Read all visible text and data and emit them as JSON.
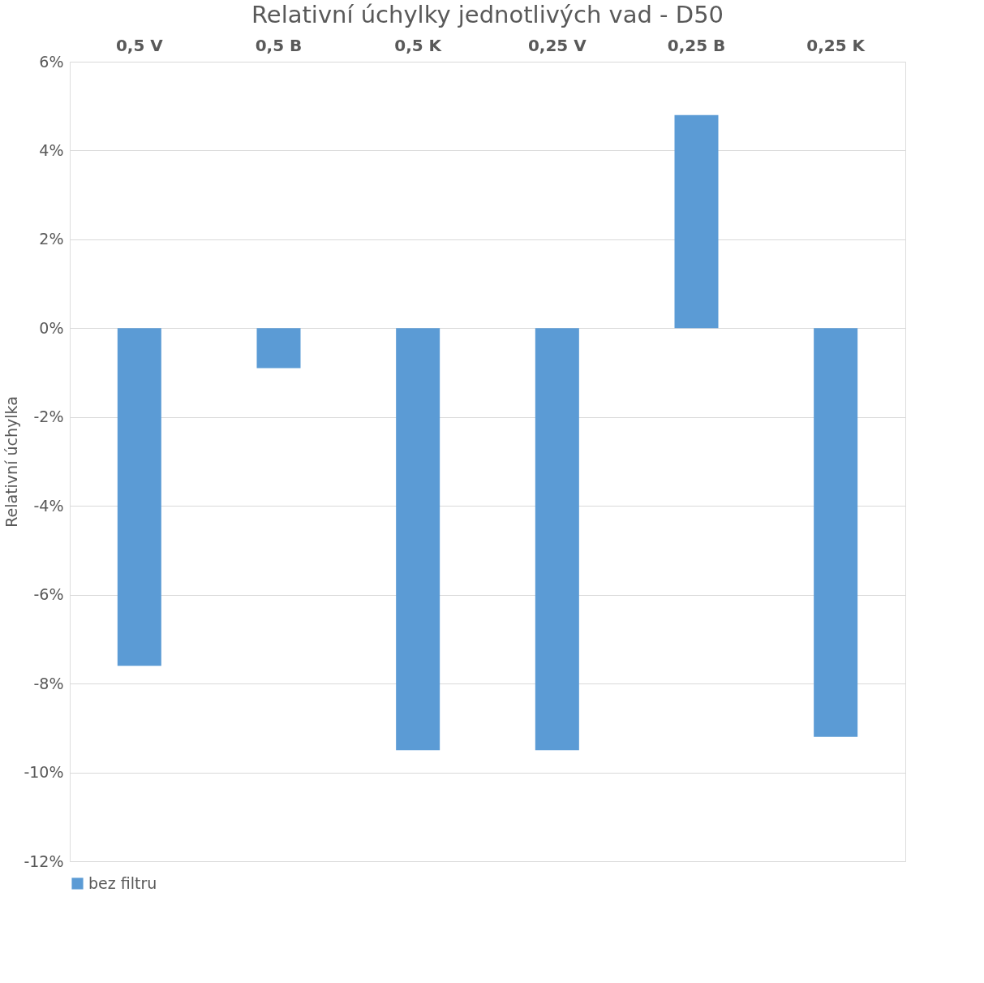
{
  "chart_data": {
    "type": "bar",
    "title": "Relativní úchylky jednotlivých vad - D50",
    "ylabel": "Relativní úchylka",
    "categories": [
      "0,5 V",
      "0,5 B",
      "0,5 K",
      "0,25 V",
      "0,25 B",
      "0,25 K"
    ],
    "series": [
      {
        "name": "bez filtru",
        "color": "#5b9bd5",
        "values": [
          -7.6,
          -0.9,
          -9.5,
          -9.5,
          4.8,
          -9.2
        ]
      }
    ],
    "ylim": [
      -12,
      6
    ],
    "yticks": [
      {
        "value": -12,
        "label": "-12%"
      },
      {
        "value": -10,
        "label": "-10%"
      },
      {
        "value": -8,
        "label": "-8%"
      },
      {
        "value": -6,
        "label": "-6%"
      },
      {
        "value": -4,
        "label": "-4%"
      },
      {
        "value": -2,
        "label": "-2%"
      },
      {
        "value": 0,
        "label": "0%"
      },
      {
        "value": 2,
        "label": "2%"
      },
      {
        "value": 4,
        "label": "4%"
      },
      {
        "value": 6,
        "label": "6%"
      }
    ],
    "grid": "y",
    "legend": "bottom"
  }
}
